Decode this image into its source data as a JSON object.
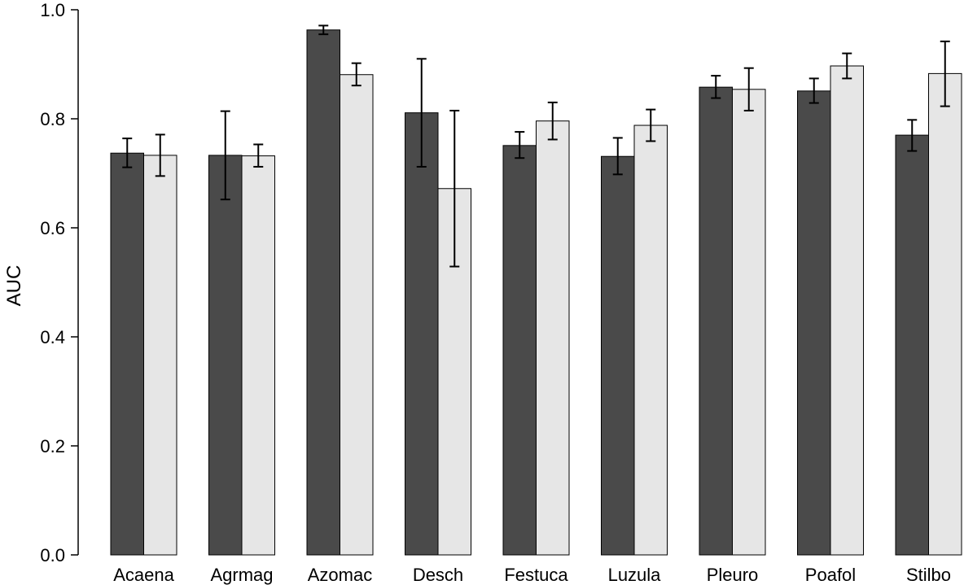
{
  "chart_data": {
    "type": "bar",
    "title": "",
    "xlabel": "",
    "ylabel": "AUC",
    "ylim": [
      0,
      1.0
    ],
    "yticks": [
      0.0,
      0.2,
      0.4,
      0.6,
      0.8,
      1.0
    ],
    "ytick_labels": [
      "0.0",
      "0.2",
      "0.4",
      "0.6",
      "0.8",
      "1.0"
    ],
    "grid": false,
    "legend": "none",
    "categories": [
      "Acaena",
      "Agrmag",
      "Azomac",
      "Desch",
      "Festuca",
      "Luzula",
      "Pleuro",
      "Poafol",
      "Stilbo"
    ],
    "series": [
      {
        "color": "#4a4a4a",
        "values": [
          0.737,
          0.733,
          0.963,
          0.811,
          0.751,
          0.731,
          0.858,
          0.851,
          0.77
        ],
        "err_low": [
          0.711,
          0.652,
          0.955,
          0.712,
          0.728,
          0.698,
          0.838,
          0.829,
          0.741
        ],
        "err_high": [
          0.764,
          0.814,
          0.971,
          0.91,
          0.776,
          0.765,
          0.879,
          0.874,
          0.798
        ]
      },
      {
        "color": "#e6e6e6",
        "values": [
          0.733,
          0.732,
          0.881,
          0.672,
          0.796,
          0.788,
          0.854,
          0.897,
          0.883
        ],
        "err_low": [
          0.695,
          0.712,
          0.861,
          0.529,
          0.762,
          0.759,
          0.815,
          0.874,
          0.823
        ],
        "err_high": [
          0.771,
          0.753,
          0.902,
          0.815,
          0.83,
          0.817,
          0.893,
          0.92,
          0.942
        ]
      }
    ]
  }
}
